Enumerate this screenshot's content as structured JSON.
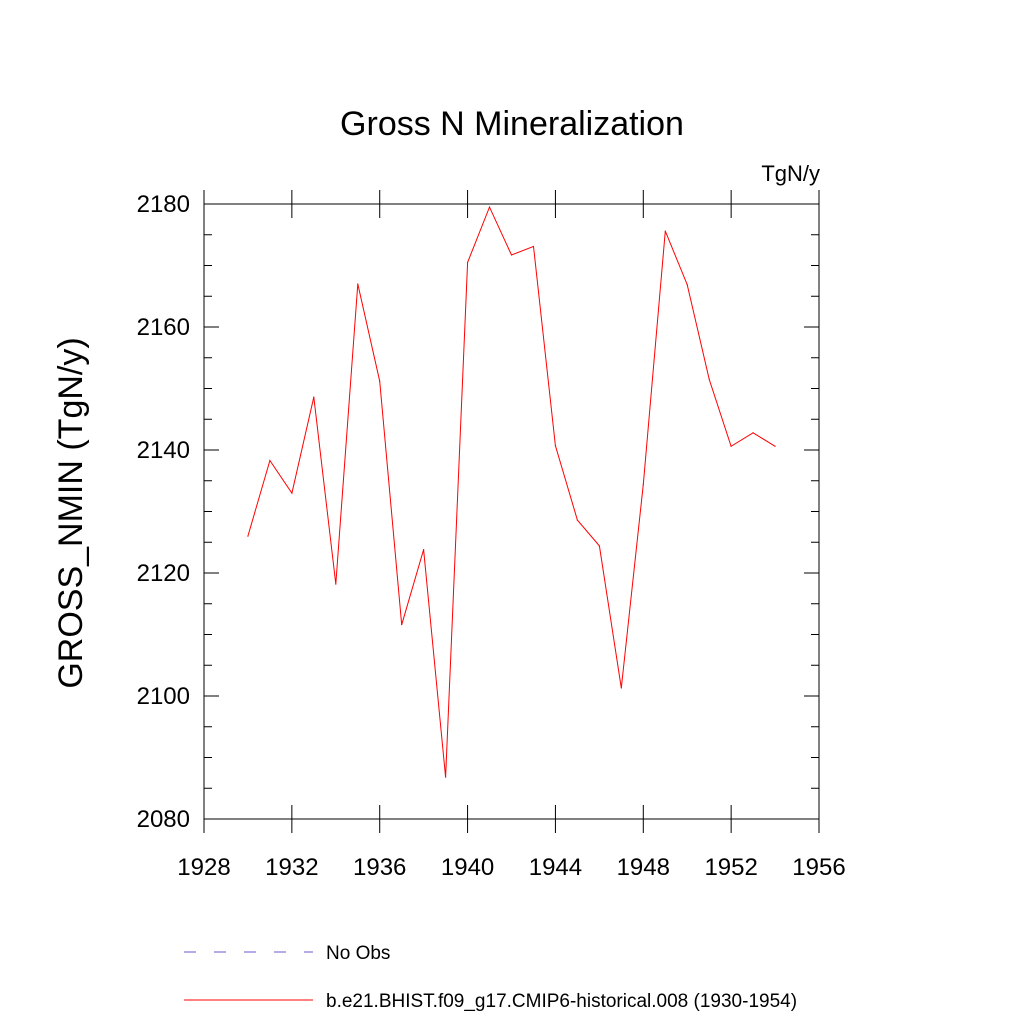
{
  "chart_data": {
    "type": "line",
    "title": "Gross N Mineralization",
    "units_label": "TgN/y",
    "ylabel": "GROSS_NMIN  (TgN/y)",
    "xlabel": "",
    "xlim": [
      1928,
      1956
    ],
    "ylim": [
      2080,
      2180
    ],
    "xticks": [
      "1928",
      "1932",
      "1936",
      "1940",
      "1944",
      "1948",
      "1952",
      "1956"
    ],
    "yticks": [
      "2080",
      "2100",
      "2120",
      "2140",
      "2160",
      "2180"
    ],
    "grid": false,
    "legend_position": "bottom",
    "series": [
      {
        "name": "No Obs",
        "color": "#6a5acd",
        "dash": "dashed",
        "x": [],
        "y": []
      },
      {
        "name": "b.e21.BHIST.f09_g17.CMIP6-historical.008 (1930-1954)",
        "color": "#ff0000",
        "dash": "solid",
        "x": [
          1930,
          1931,
          1932,
          1933,
          1934,
          1935,
          1936,
          1937,
          1938,
          1939,
          1940,
          1941,
          1942,
          1943,
          1944,
          1945,
          1946,
          1947,
          1948,
          1949,
          1950,
          1951,
          1952,
          1953,
          1954
        ],
        "y": [
          2126,
          2138.3,
          2133,
          2148.6,
          2118.2,
          2167,
          2151.2,
          2111.6,
          2123.8,
          2086.8,
          2170.5,
          2179.5,
          2171.7,
          2173.1,
          2140.7,
          2128.6,
          2124.4,
          2101.3,
          2134.4,
          2175.6,
          2166.9,
          2151.5,
          2140.6,
          2142.8,
          2140.6
        ]
      }
    ]
  }
}
